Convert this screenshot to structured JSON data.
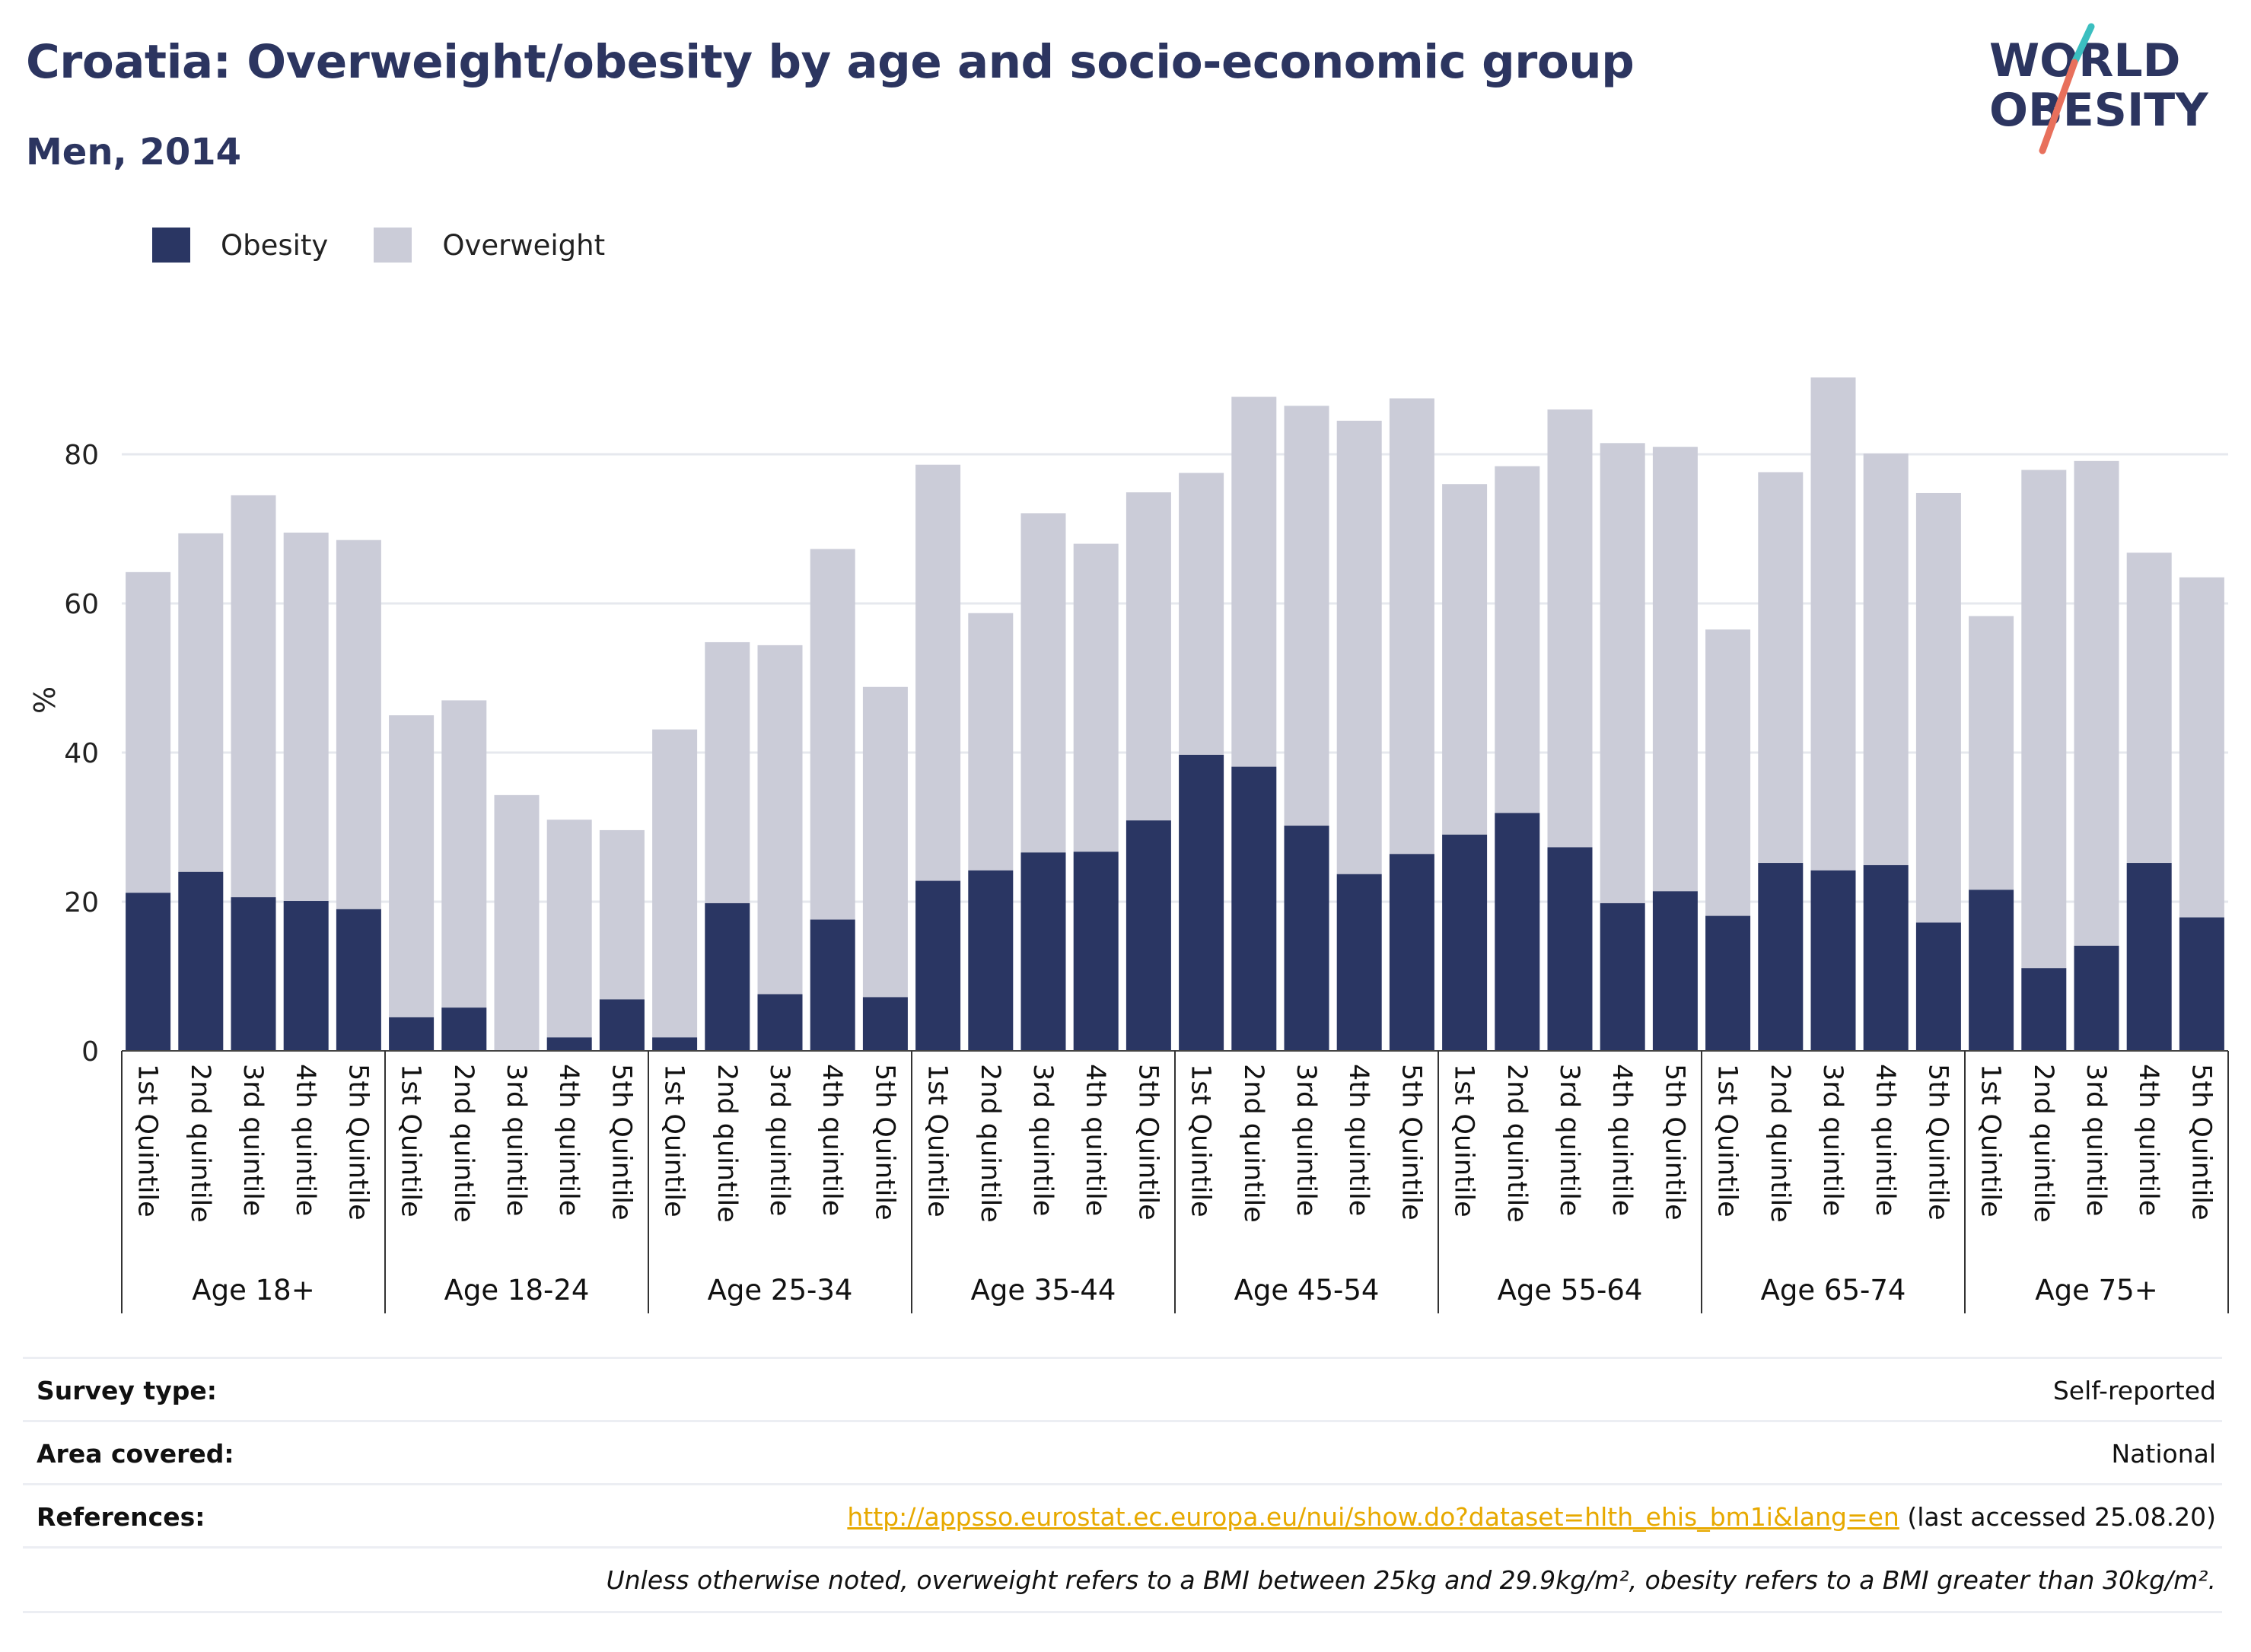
{
  "header": {
    "title": "Croatia: Overweight/obesity by age and socio-economic group",
    "subtitle": "Men, 2014"
  },
  "logo": {
    "line1": "WORLD",
    "line2": "OBESITY"
  },
  "colors": {
    "obesity": "#2a3663",
    "overweight": "#cbccd8",
    "title": "#2c3560",
    "link": "#e7a900",
    "logo_teal": "#3bbfc0",
    "logo_coral": "#e8705c"
  },
  "legend": [
    {
      "label": "Obesity",
      "color": "#2a3663"
    },
    {
      "label": "Overweight",
      "color": "#cbccd8"
    }
  ],
  "chart_data": {
    "type": "bar",
    "stacked": true,
    "ylabel": "%",
    "ylim": [
      0,
      92
    ],
    "yticks": [
      0,
      20,
      40,
      60,
      80
    ],
    "grid": true,
    "legend_position": "top-left",
    "groups": [
      {
        "label": "Age 18+",
        "categories": [
          "1st Quintile",
          "2nd quintile",
          "3rd quintile",
          "4th quintile",
          "5th Quintile"
        ],
        "obesity": [
          21.2,
          24.0,
          20.6,
          20.1,
          19.0
        ],
        "total": [
          64.2,
          69.4,
          74.5,
          69.5,
          68.5
        ]
      },
      {
        "label": "Age 18-24",
        "categories": [
          "1st Quintile",
          "2nd quintile",
          "3rd quintile",
          "4th quintile",
          "5th Quintile"
        ],
        "obesity": [
          4.5,
          5.8,
          0,
          1.8,
          6.9
        ],
        "total": [
          45.0,
          47.0,
          34.3,
          31.0,
          29.6
        ]
      },
      {
        "label": "Age 25-34",
        "categories": [
          "1st Quintile",
          "2nd quintile",
          "3rd quintile",
          "4th quintile",
          "5th Quintile"
        ],
        "obesity": [
          1.8,
          19.8,
          7.6,
          17.6,
          7.2
        ],
        "total": [
          43.1,
          54.8,
          54.4,
          67.3,
          48.8
        ]
      },
      {
        "label": "Age 35-44",
        "categories": [
          "1st Quintile",
          "2nd quintile",
          "3rd quintile",
          "4th quintile",
          "5th Quintile"
        ],
        "obesity": [
          22.8,
          24.2,
          26.6,
          26.7,
          30.9
        ],
        "total": [
          78.6,
          58.7,
          72.1,
          68.0,
          74.9
        ]
      },
      {
        "label": "Age 45-54",
        "categories": [
          "1st Quintile",
          "2nd quintile",
          "3rd quintile",
          "4th quintile",
          "5th Quintile"
        ],
        "obesity": [
          39.7,
          38.1,
          30.2,
          23.7,
          26.4
        ],
        "total": [
          77.5,
          87.7,
          86.5,
          84.5,
          87.5
        ]
      },
      {
        "label": "Age 55-64",
        "categories": [
          "1st Quintile",
          "2nd quintile",
          "3rd quintile",
          "4th quintile",
          "5th Quintile"
        ],
        "obesity": [
          29.0,
          31.9,
          27.3,
          19.8,
          21.4
        ],
        "total": [
          76.0,
          78.4,
          86.0,
          81.5,
          81.0
        ]
      },
      {
        "label": "Age 65-74",
        "categories": [
          "1st Quintile",
          "2nd quintile",
          "3rd quintile",
          "4th quintile",
          "5th Quintile"
        ],
        "obesity": [
          18.1,
          25.2,
          24.2,
          24.9,
          17.2
        ],
        "total": [
          56.5,
          77.6,
          90.3,
          80.1,
          74.8
        ]
      },
      {
        "label": "Age 75+",
        "categories": [
          "1st Quintile",
          "2nd quintile",
          "3rd quintile",
          "4th quintile",
          "5th Quintile"
        ],
        "obesity": [
          21.6,
          11.1,
          14.1,
          25.2,
          17.9
        ],
        "total": [
          58.3,
          77.9,
          79.1,
          66.8,
          63.5
        ]
      }
    ]
  },
  "info": {
    "survey_type": {
      "key": "Survey type:",
      "value": "Self-reported"
    },
    "area_covered": {
      "key": "Area covered:",
      "value": "National"
    },
    "references": {
      "key": "References:",
      "link": "http://appsso.eurostat.ec.europa.eu/nui/show.do?dataset=hlth_ehis_bm1i&lang=en",
      "suffix": " (last accessed 25.08.20)"
    },
    "note": "Unless otherwise noted, overweight refers to a BMI between 25kg and 29.9kg/m², obesity refers to a BMI greater than 30kg/m²."
  }
}
